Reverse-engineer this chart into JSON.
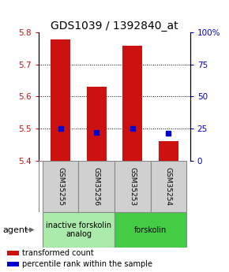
{
  "title": "GDS1039 / 1392840_at",
  "samples": [
    "GSM35255",
    "GSM35256",
    "GSM35253",
    "GSM35254"
  ],
  "bar_values": [
    5.78,
    5.63,
    5.76,
    5.46
  ],
  "percentile_values": [
    5.5,
    5.488,
    5.5,
    5.484
  ],
  "ylim": [
    5.4,
    5.8
  ],
  "yticks_left": [
    5.4,
    5.5,
    5.6,
    5.7,
    5.8
  ],
  "yticks_right": [
    0,
    25,
    50,
    75,
    100
  ],
  "yticks_right_labels": [
    "0",
    "25",
    "50",
    "75",
    "100%"
  ],
  "bar_color": "#cc1111",
  "percentile_color": "#0000cc",
  "bar_bottom": 5.4,
  "groups": [
    {
      "label": "inactive forskolin\nanalog",
      "samples": [
        0,
        1
      ],
      "color": "#aaeaaa"
    },
    {
      "label": "forskolin",
      "samples": [
        2,
        3
      ],
      "color": "#44cc44"
    }
  ],
  "agent_label": "agent",
  "legend_items": [
    {
      "color": "#cc1111",
      "label": "transformed count"
    },
    {
      "color": "#0000cc",
      "label": "percentile rank within the sample"
    }
  ],
  "grid_yticks": [
    5.5,
    5.6,
    5.7
  ],
  "title_fontsize": 10,
  "tick_fontsize": 7.5,
  "sample_fontsize": 6.5,
  "group_fontsize": 7,
  "legend_fontsize": 7,
  "agent_fontsize": 8,
  "bg_color": "#ffffff",
  "gray_box_color": "#d0d0d0",
  "box_edge_color": "#888888"
}
